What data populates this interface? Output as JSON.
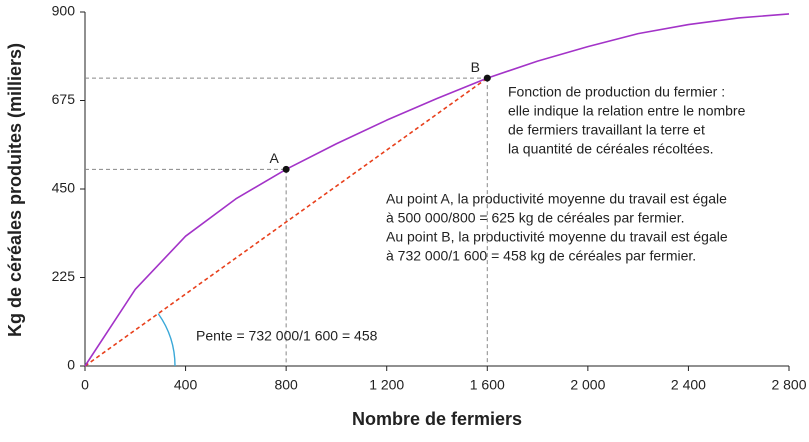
{
  "chart_data": {
    "type": "line",
    "x_label": "Nombre de fermiers",
    "y_label": "Kg de céréales produites (milliers)",
    "x": [
      0,
      200,
      400,
      600,
      800,
      1000,
      1200,
      1400,
      1600,
      1800,
      2000,
      2200,
      2400,
      2600,
      2800
    ],
    "series": [
      {
        "color": "#a333c8",
        "values": [
          0,
          195,
          330,
          425,
          500,
          565,
          625,
          680,
          732,
          775,
          812,
          845,
          868,
          885,
          895
        ]
      }
    ],
    "points": [
      {
        "label": "A",
        "x": 800,
        "y": 500
      },
      {
        "label": "B",
        "x": 1600,
        "y": 732
      }
    ],
    "slope_color": "#e8401c",
    "slope_label": "Pente = 732 000/1 600 = 458",
    "annotations": [
      {
        "lines": [
          "Fonction de production du fermier :",
          "elle indique la relation entre le nombre",
          "de fermiers travaillant la terre et",
          "la quantité de céréales récoltées."
        ]
      },
      {
        "lines": [
          "Au point A, la productivité moyenne du travail est égale",
          "à 500 000/800 = 625 kg de céréales par fermier.",
          "Au point B, la productivité moyenne du travail est égale",
          "à 732 000/1 600 = 458 kg de céréales par fermier."
        ]
      }
    ],
    "xlim": [
      0,
      2800
    ],
    "xticks": [
      0,
      400,
      800,
      {
        "value": 1200,
        "label": "1 200"
      },
      {
        "value": 1600,
        "label": "1 600"
      },
      {
        "value": 2000,
        "label": "2 000"
      },
      {
        "value": 2400,
        "label": "2 400"
      },
      {
        "value": 2800,
        "label": "2 800"
      }
    ],
    "ylim": [
      0,
      900
    ],
    "yticks": [
      0,
      225,
      450,
      675,
      900
    ]
  }
}
